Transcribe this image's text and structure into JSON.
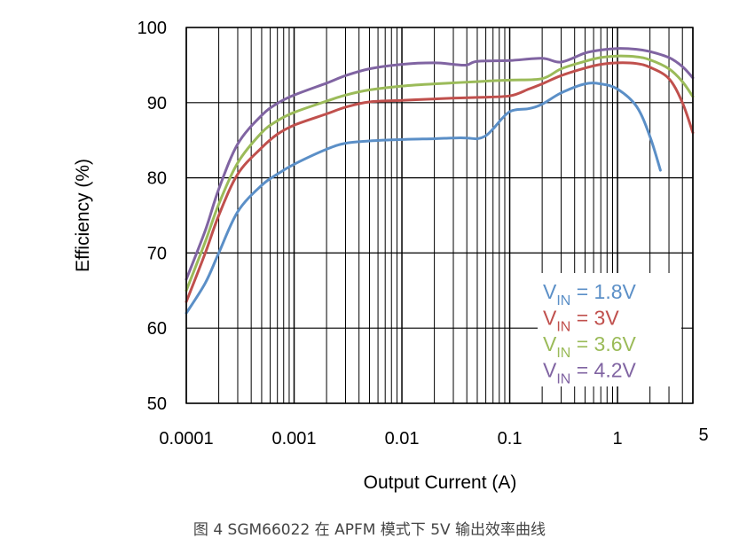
{
  "chart_data": {
    "type": "line",
    "xlabel": "Output Current (A)",
    "ylabel": "Efficiency (%)",
    "xscale": "log",
    "xlim": [
      0.0001,
      5
    ],
    "ylim": [
      50,
      100
    ],
    "x_ticks": [
      {
        "value": 0.0001,
        "label": "0.0001"
      },
      {
        "value": 0.001,
        "label": "0.001"
      },
      {
        "value": 0.01,
        "label": "0.01"
      },
      {
        "value": 0.1,
        "label": "0.1"
      },
      {
        "value": 1,
        "label": "1"
      },
      {
        "value": 5,
        "label": "5"
      }
    ],
    "y_ticks": [
      {
        "value": 50,
        "label": "50"
      },
      {
        "value": 60,
        "label": "60"
      },
      {
        "value": 70,
        "label": "70"
      },
      {
        "value": 80,
        "label": "80"
      },
      {
        "value": 90,
        "label": "90"
      },
      {
        "value": 100,
        "label": "100"
      }
    ],
    "grid": true,
    "legend_position": "bottom-right-inside",
    "series": [
      {
        "name_main": "V",
        "name_sub": "IN",
        "name_rest": " = 1.8V",
        "color": "#5b8fc7",
        "x": [
          0.0001,
          0.00015,
          0.0002,
          0.0003,
          0.0005,
          0.0007,
          0.001,
          0.002,
          0.003,
          0.005,
          0.01,
          0.02,
          0.03,
          0.04,
          0.05,
          0.06,
          0.07,
          0.1,
          0.15,
          0.2,
          0.3,
          0.5,
          0.7,
          1,
          1.5,
          2,
          2.5
        ],
        "y": [
          62,
          66,
          70,
          75.5,
          79,
          80.5,
          81.8,
          83.8,
          84.6,
          84.9,
          85.1,
          85.2,
          85.3,
          85.3,
          85.2,
          85.6,
          86.5,
          88.8,
          89.2,
          89.8,
          91.3,
          92.5,
          92.5,
          91.8,
          89.5,
          85.5,
          81
        ]
      },
      {
        "name_main": "V",
        "name_sub": "IN",
        "name_rest": " = 3V",
        "color": "#c0504d",
        "x": [
          0.0001,
          0.00015,
          0.0002,
          0.0003,
          0.0005,
          0.0007,
          0.001,
          0.002,
          0.003,
          0.005,
          0.01,
          0.02,
          0.03,
          0.05,
          0.1,
          0.15,
          0.2,
          0.3,
          0.5,
          0.7,
          1,
          1.5,
          2,
          3,
          4,
          5
        ],
        "y": [
          63.5,
          70,
          75,
          80.5,
          84,
          85.8,
          87,
          88.5,
          89.4,
          90.1,
          90.3,
          90.5,
          90.6,
          90.7,
          90.9,
          91.8,
          92.5,
          93.6,
          94.6,
          95.1,
          95.3,
          95.2,
          94.7,
          93.2,
          90,
          86
        ]
      },
      {
        "name_main": "V",
        "name_sub": "IN",
        "name_rest": " = 3.6V",
        "color": "#9bbb59",
        "x": [
          0.0001,
          0.00015,
          0.0002,
          0.0003,
          0.0005,
          0.0007,
          0.001,
          0.002,
          0.003,
          0.005,
          0.01,
          0.02,
          0.05,
          0.1,
          0.2,
          0.3,
          0.5,
          0.7,
          1,
          1.5,
          2,
          3,
          4,
          5
        ],
        "y": [
          65,
          71.5,
          76.5,
          82,
          86,
          87.6,
          88.7,
          90.2,
          91,
          91.7,
          92.2,
          92.5,
          92.8,
          93,
          93.2,
          94.5,
          95.5,
          96,
          96.2,
          96.1,
          95.7,
          94.5,
          92.8,
          90.8
        ]
      },
      {
        "name_main": "V",
        "name_sub": "IN",
        "name_rest": " = 4.2V",
        "color": "#8064a2",
        "x": [
          0.0001,
          0.00015,
          0.0002,
          0.0003,
          0.0005,
          0.0007,
          0.001,
          0.002,
          0.003,
          0.005,
          0.01,
          0.02,
          0.03,
          0.04,
          0.05,
          0.1,
          0.2,
          0.3,
          0.5,
          0.7,
          1,
          1.5,
          2,
          3,
          4,
          5
        ],
        "y": [
          66.5,
          73,
          78.5,
          84.5,
          88.3,
          89.9,
          91,
          92.6,
          93.6,
          94.5,
          95.1,
          95.3,
          95.1,
          95,
          95.5,
          95.6,
          95.9,
          95.4,
          96.6,
          97,
          97.2,
          97.1,
          96.8,
          96,
          94.8,
          93.3
        ]
      }
    ]
  },
  "caption": "图 4 SGM66022 在 APFM 模式下 5V 输出效率曲线"
}
